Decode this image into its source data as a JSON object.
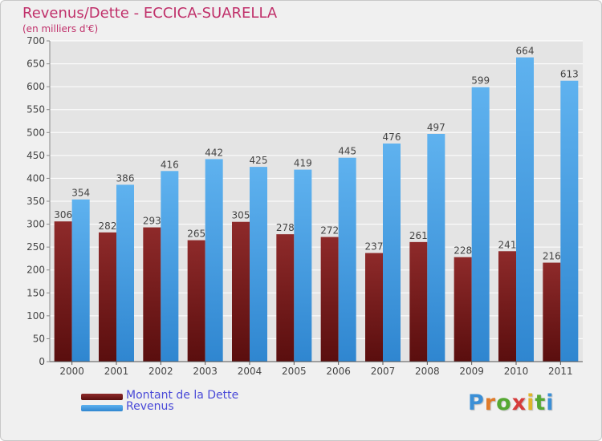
{
  "header": {
    "title": "Revenus/Dette - ECCICA-SUARELLA",
    "subtitle": "(en milliers d'€)"
  },
  "chart_data": {
    "type": "bar",
    "categories": [
      "2000",
      "2001",
      "2002",
      "2003",
      "2004",
      "2005",
      "2006",
      "2007",
      "2008",
      "2009",
      "2010",
      "2011"
    ],
    "series": [
      {
        "name": "Montant de la Dette",
        "color": "#7a1c1c",
        "values": [
          306,
          282,
          293,
          265,
          305,
          278,
          272,
          237,
          261,
          228,
          241,
          216
        ]
      },
      {
        "name": "Revenus",
        "color": "#4aa3e8",
        "values": [
          354,
          386,
          416,
          442,
          425,
          419,
          445,
          476,
          497,
          599,
          664,
          613
        ]
      }
    ],
    "ylim": [
      0,
      700
    ],
    "yticks": [
      0,
      50,
      100,
      150,
      200,
      250,
      300,
      350,
      400,
      450,
      500,
      550,
      600,
      650,
      700
    ],
    "grid": true,
    "legend_position": "bottom-left"
  },
  "legend": {
    "items": [
      {
        "label": "Montant de la Dette",
        "color": "#7a1c1c"
      },
      {
        "label": "Revenus",
        "color": "#4aa3e8"
      }
    ]
  },
  "logo": {
    "letters": [
      "P",
      "r",
      "o",
      "x",
      "i",
      "t",
      "i"
    ],
    "colors": [
      "#3b8fd6",
      "#e07b2a",
      "#55a832",
      "#d63b3b",
      "#e0b52a",
      "#55a832",
      "#3b8fd6"
    ]
  }
}
